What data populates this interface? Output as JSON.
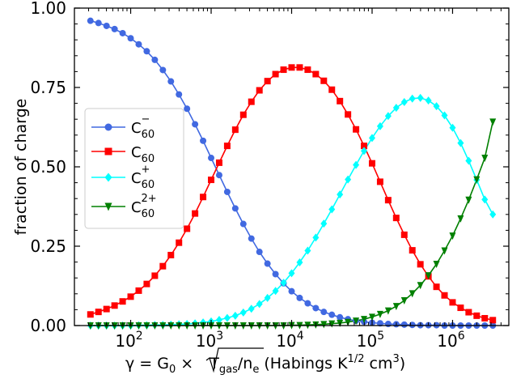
{
  "chart_data": {
    "type": "line",
    "x_scale": "log",
    "xlim": [
      20,
      5000000
    ],
    "ylim": [
      0,
      1
    ],
    "ylabel": "fraction of charge",
    "xlabel": {
      "prefix": "γ =  G",
      "sub0": "0",
      "times": " × ",
      "sqrt_body": "T",
      "sqrt_sub": "gas",
      "slash": "/n",
      "sub_e": "e",
      "units_a": " (Habings K",
      "units_sup": "1/2",
      "units_b": " cm",
      "units_sup2": "3",
      "units_c": ")"
    },
    "x_ticks": [
      {
        "value": 100,
        "base": "10",
        "exp": "2"
      },
      {
        "value": 1000,
        "base": "10",
        "exp": "3"
      },
      {
        "value": 10000,
        "base": "10",
        "exp": "4"
      },
      {
        "value": 100000,
        "base": "10",
        "exp": "5"
      },
      {
        "value": 1000000,
        "base": "10",
        "exp": "6"
      }
    ],
    "y_ticks": [
      {
        "value": 0,
        "label": "0.00"
      },
      {
        "value": 0.25,
        "label": "0.25"
      },
      {
        "value": 0.5,
        "label": "0.50"
      },
      {
        "value": 0.75,
        "label": "0.75"
      },
      {
        "value": 1,
        "label": "1.00"
      }
    ],
    "legend_position": "center-left",
    "grid": false,
    "series": [
      {
        "id": "c60-minus",
        "label_base": "C",
        "label_sub": "60",
        "label_sup": "−",
        "color": "#4169e1",
        "marker": "circle",
        "x_log_start": 1.5,
        "x_log_end": 6.5,
        "values": [
          0.96,
          0.953,
          0.944,
          0.934,
          0.921,
          0.905,
          0.886,
          0.864,
          0.837,
          0.805,
          0.769,
          0.728,
          0.683,
          0.634,
          0.582,
          0.528,
          0.474,
          0.421,
          0.369,
          0.32,
          0.274,
          0.232,
          0.195,
          0.162,
          0.133,
          0.108,
          0.087,
          0.07,
          0.055,
          0.043,
          0.034,
          0.026,
          0.02,
          0.015,
          0.012,
          0.009,
          0.007,
          0.005,
          0.004,
          0.003,
          0.002,
          0.001,
          0.001,
          0.001,
          0.0,
          0.0,
          0.0,
          0.0,
          0.0,
          0.0,
          0.0
        ]
      },
      {
        "id": "c60",
        "label_base": "C",
        "label_sub": "60",
        "label_sup": "",
        "color": "#ff0000",
        "marker": "square",
        "x_log_start": 1.5,
        "x_log_end": 6.5,
        "values": [
          0.035,
          0.043,
          0.052,
          0.063,
          0.076,
          0.091,
          0.11,
          0.131,
          0.157,
          0.187,
          0.222,
          0.261,
          0.305,
          0.353,
          0.405,
          0.459,
          0.513,
          0.566,
          0.617,
          0.664,
          0.705,
          0.741,
          0.77,
          0.792,
          0.806,
          0.813,
          0.813,
          0.806,
          0.792,
          0.771,
          0.743,
          0.707,
          0.665,
          0.618,
          0.566,
          0.511,
          0.453,
          0.395,
          0.339,
          0.286,
          0.237,
          0.193,
          0.155,
          0.122,
          0.095,
          0.073,
          0.056,
          0.042,
          0.031,
          0.023,
          0.017
        ]
      },
      {
        "id": "c60-plus",
        "label_base": "C",
        "label_sub": "60",
        "label_sup": "+",
        "color": "#00ffff",
        "marker": "diamond",
        "x_log_start": 1.5,
        "x_log_end": 6.5,
        "values": [
          0.0,
          0.0,
          0.0,
          0.0,
          0.0,
          0.0,
          0.001,
          0.001,
          0.002,
          0.002,
          0.003,
          0.004,
          0.005,
          0.007,
          0.01,
          0.013,
          0.018,
          0.024,
          0.031,
          0.041,
          0.053,
          0.068,
          0.087,
          0.109,
          0.135,
          0.165,
          0.199,
          0.236,
          0.277,
          0.321,
          0.366,
          0.413,
          0.46,
          0.506,
          0.55,
          0.591,
          0.628,
          0.66,
          0.686,
          0.704,
          0.715,
          0.717,
          0.709,
          0.691,
          0.662,
          0.623,
          0.575,
          0.519,
          0.459,
          0.397,
          0.35
        ]
      },
      {
        "id": "c60-2plus",
        "label_base": "C",
        "label_sub": "60",
        "label_sup": "2+",
        "color": "#008000",
        "marker": "triangle-down",
        "x_log_start": 1.5,
        "x_log_end": 6.5,
        "values": [
          0.0,
          0.0,
          0.0,
          0.0,
          0.0,
          0.0,
          0.0,
          0.0,
          0.0,
          0.0,
          0.0,
          0.0,
          0.0,
          0.0,
          0.0,
          0.0,
          0.0,
          0.0,
          0.0,
          0.0,
          0.0,
          0.0,
          0.0,
          0.0,
          0.0,
          0.001,
          0.001,
          0.002,
          0.003,
          0.004,
          0.006,
          0.008,
          0.011,
          0.015,
          0.02,
          0.027,
          0.036,
          0.047,
          0.061,
          0.079,
          0.101,
          0.127,
          0.158,
          0.194,
          0.236,
          0.283,
          0.337,
          0.396,
          0.46,
          0.528,
          0.642
        ]
      }
    ]
  }
}
